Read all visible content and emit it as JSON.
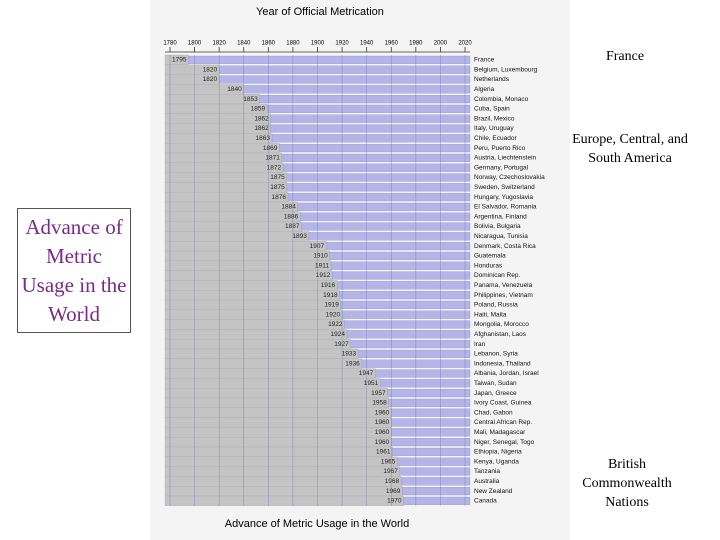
{
  "slide": {
    "title": "Advance of Metric Usage in the World",
    "annotations": [
      "France",
      "Europe, Central, and South America",
      "British Commonwealth Nations"
    ]
  },
  "chart_data": {
    "type": "bar",
    "orientation": "horizontal",
    "title": "Year of Official Metrication",
    "caption": "Advance of Metric Usage in the World",
    "categories": [
      "France",
      "Belgium, Luxembourg",
      "Netherlands",
      "Algeria",
      "Colombia, Monaco",
      "Cuba, Spain",
      "Brazil, Mexico",
      "Italy, Uruguay",
      "Chile, Ecuador",
      "Peru, Puerto Rico",
      "Austria, Liechtenstein",
      "Germany, Portugal",
      "Norway, Czechoslovakia",
      "Sweden, Switzerland",
      "Hungary, Yugoslavia",
      "El Salvador, Romania",
      "Argentina, Finland",
      "Bolivia, Bulgaria",
      "Nicaragua, Tunisia",
      "Denmark, Costa Rica",
      "Guatemala",
      "Honduras",
      "Dominican Rep.",
      "Panama, Venezuela",
      "Philippines, Vietnam",
      "Poland, Russia",
      "Haiti, Malta",
      "Mongolia, Morocco",
      "Afghanistan, Laos",
      "Iran",
      "Lebanon, Syria",
      "Indonesia, Thailand",
      "Albania, Jordan, Israel",
      "Taiwan, Sudan",
      "Japan, Greece",
      "Ivory Coast, Guinea",
      "Chad, Gabon",
      "Central African Rep.",
      "Mali, Madagascar",
      "Niger, Senegal, Togo",
      "Ethiopia, Nigeria",
      "Kenya, Uganda",
      "Tanzania",
      "Australia",
      "New Zealand",
      "Canada"
    ],
    "values": [
      1795,
      1820,
      1820,
      1840,
      1853,
      1859,
      1862,
      1862,
      1863,
      1869,
      1871,
      1872,
      1875,
      1875,
      1876,
      1884,
      1886,
      1887,
      1893,
      1907,
      1910,
      1911,
      1912,
      1916,
      1918,
      1919,
      1920,
      1922,
      1924,
      1927,
      1933,
      1936,
      1947,
      1951,
      1957,
      1958,
      1960,
      1960,
      1960,
      1960,
      1961,
      1965,
      1967,
      1968,
      1969,
      1970
    ],
    "color": "#b4b4e8",
    "xlim": [
      1780,
      2020
    ],
    "xticks": [
      1780,
      1800,
      1820,
      1840,
      1860,
      1880,
      1900,
      1920,
      1940,
      1960,
      1980,
      2000,
      2020
    ],
    "grid": true
  }
}
